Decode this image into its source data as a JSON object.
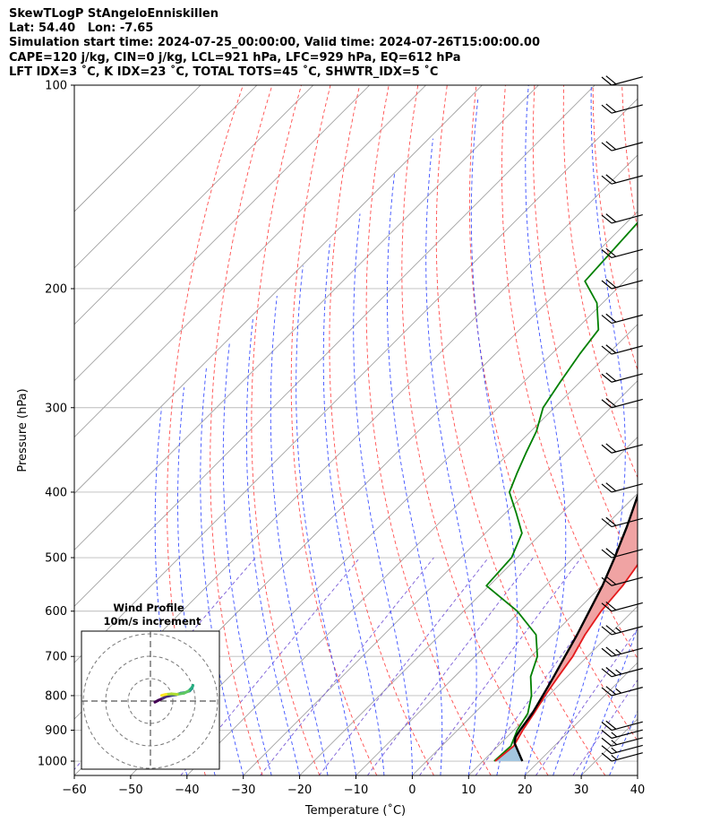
{
  "header": {
    "line1": "SkewTLogP StAngeloEnniskillen",
    "line2": "Lat: 54.40   Lon: -7.65",
    "line3": "Simulation start time: 2024-07-25_00:00:00, Valid time: 2024-07-26T15:00:00.00",
    "line4": "CAPE=120 j/kg, CIN=0 j/kg, LCL=921 hPa, LFC=929 hPa, EQ=612 hPa",
    "line5": "LFT IDX=3 ˚C, K IDX=23 ˚C, TOTAL TOTS=45 ˚C, SHWTR_IDX=5 ˚C"
  },
  "chart_data": {
    "type": "skewt",
    "xlabel": "Temperature (˚C)",
    "ylabel": "Pressure (hPa)",
    "xlim": [
      -60,
      40
    ],
    "ylim": [
      1050,
      100
    ],
    "x_ticks": [
      "−60",
      "−50",
      "−40",
      "−30",
      "−20",
      "−10",
      "0",
      "10",
      "20",
      "30",
      "40"
    ],
    "y_ticks": [
      "100",
      "200",
      "300",
      "400",
      "500",
      "600",
      "700",
      "800",
      "900",
      "1000"
    ],
    "colors": {
      "temperature": "#e41a1c",
      "dewpoint": "#008000",
      "parcel": "#000000",
      "cape_fill": "#a3c6df",
      "cin_fill": "#f0a3a3",
      "dry_adiabat": "#ff4d4d",
      "moist_adiabat": "#3c50ff",
      "mixing_ratio": "#7a5cd6",
      "isotherm": "#999999",
      "grid": "#bbbbbb"
    },
    "temperature": [
      [
        1000,
        12.2
      ],
      [
        950,
        12.8
      ],
      [
        900,
        11.6
      ],
      [
        850,
        10.6
      ],
      [
        800,
        9.4
      ],
      [
        750,
        8.4
      ],
      [
        700,
        7.4
      ],
      [
        650,
        5.7
      ],
      [
        600,
        4.4
      ],
      [
        550,
        3.7
      ],
      [
        500,
        2.3
      ],
      [
        450,
        -1.5
      ],
      [
        400,
        -7.0
      ],
      [
        350,
        -13.5
      ],
      [
        300,
        -22.0
      ],
      [
        275,
        -24.5
      ],
      [
        250,
        -27.0
      ],
      [
        225,
        -29.0
      ],
      [
        200,
        -30.5
      ],
      [
        185,
        -29.0
      ],
      [
        170,
        -30.0
      ],
      [
        150,
        -31.5
      ],
      [
        125,
        -33.5
      ],
      [
        100,
        -37.0
      ]
    ],
    "dewpoint": [
      [
        1000,
        12.0
      ],
      [
        950,
        12.3
      ],
      [
        900,
        10.6
      ],
      [
        850,
        9.5
      ],
      [
        800,
        7.0
      ],
      [
        750,
        3.5
      ],
      [
        700,
        1.1
      ],
      [
        650,
        -3.0
      ],
      [
        600,
        -10.5
      ],
      [
        550,
        -20.5
      ],
      [
        500,
        -21.0
      ],
      [
        460,
        -23.5
      ],
      [
        430,
        -28.0
      ],
      [
        400,
        -33.0
      ],
      [
        375,
        -35.0
      ],
      [
        350,
        -37.0
      ],
      [
        325,
        -39.0
      ],
      [
        300,
        -42.0
      ],
      [
        275,
        -43.5
      ],
      [
        250,
        -45.0
      ],
      [
        230,
        -46.0
      ],
      [
        210,
        -51.0
      ],
      [
        195,
        -57.0
      ],
      [
        160,
        -58.0
      ],
      [
        130,
        -62.0
      ],
      [
        100,
        -67.0
      ]
    ],
    "parcel": [
      [
        1000,
        17.0
      ],
      [
        940,
        12.4
      ],
      [
        921,
        11.5
      ],
      [
        900,
        11.1
      ],
      [
        850,
        10.3
      ],
      [
        800,
        9.0
      ],
      [
        750,
        7.6
      ],
      [
        700,
        6.0
      ],
      [
        650,
        4.3
      ],
      [
        600,
        2.3
      ],
      [
        550,
        0.1
      ],
      [
        500,
        -2.7
      ],
      [
        450,
        -6.0
      ],
      [
        400,
        -10.0
      ],
      [
        350,
        -15.3
      ],
      [
        300,
        -22.2
      ],
      [
        250,
        -31.2
      ],
      [
        200,
        -43.0
      ],
      [
        175,
        -49.0
      ],
      [
        150,
        -56.0
      ],
      [
        125,
        -64.0
      ],
      [
        100,
        -75.0
      ]
    ],
    "wind_barbs": [
      {
        "p": 1000,
        "spd_kt": 15,
        "dir": 250
      },
      {
        "p": 975,
        "spd_kt": 15,
        "dir": 250
      },
      {
        "p": 950,
        "spd_kt": 15,
        "dir": 250
      },
      {
        "p": 925,
        "spd_kt": 15,
        "dir": 245
      },
      {
        "p": 900,
        "spd_kt": 20,
        "dir": 240
      },
      {
        "p": 800,
        "spd_kt": 25,
        "dir": 255
      },
      {
        "p": 750,
        "spd_kt": 25,
        "dir": 240
      },
      {
        "p": 700,
        "spd_kt": 25,
        "dir": 245
      },
      {
        "p": 650,
        "spd_kt": 25,
        "dir": 245
      },
      {
        "p": 600,
        "spd_kt": 20,
        "dir": 250
      },
      {
        "p": 550,
        "spd_kt": 20,
        "dir": 250
      },
      {
        "p": 500,
        "spd_kt": 20,
        "dir": 250
      },
      {
        "p": 450,
        "spd_kt": 20,
        "dir": 250
      },
      {
        "p": 400,
        "spd_kt": 20,
        "dir": 250
      },
      {
        "p": 350,
        "spd_kt": 20,
        "dir": 250
      },
      {
        "p": 300,
        "spd_kt": 20,
        "dir": 250
      },
      {
        "p": 275,
        "spd_kt": 20,
        "dir": 250
      },
      {
        "p": 250,
        "spd_kt": 20,
        "dir": 250
      },
      {
        "p": 225,
        "spd_kt": 20,
        "dir": 250
      },
      {
        "p": 200,
        "spd_kt": 20,
        "dir": 250
      },
      {
        "p": 180,
        "spd_kt": 20,
        "dir": 250
      },
      {
        "p": 160,
        "spd_kt": 20,
        "dir": 250
      },
      {
        "p": 140,
        "spd_kt": 20,
        "dir": 250
      },
      {
        "p": 125,
        "spd_kt": 20,
        "dir": 250
      },
      {
        "p": 110,
        "spd_kt": 20,
        "dir": 250
      },
      {
        "p": 100,
        "spd_kt": 20,
        "dir": 250
      }
    ],
    "hodograph": {
      "title": "Wind Profile",
      "subtitle": "10m/s increment",
      "rings_ms": [
        10,
        20,
        30
      ],
      "points": [
        [
          2.0,
          -0.5
        ],
        [
          3.5,
          0.3
        ],
        [
          5.5,
          1.2
        ],
        [
          7.0,
          2.0
        ],
        [
          9.5,
          2.5
        ],
        [
          11.5,
          2.8
        ],
        [
          13.5,
          3.5
        ],
        [
          15.5,
          3.8
        ],
        [
          17.5,
          4.5
        ],
        [
          18.5,
          5.5
        ],
        [
          19.0,
          7.0
        ],
        [
          18.5,
          6.0
        ],
        [
          17.0,
          4.5
        ],
        [
          15.0,
          3.5
        ],
        [
          12.0,
          3.0
        ],
        [
          9.5,
          3.2
        ],
        [
          7.0,
          3.0
        ],
        [
          5.0,
          2.5
        ]
      ]
    }
  }
}
